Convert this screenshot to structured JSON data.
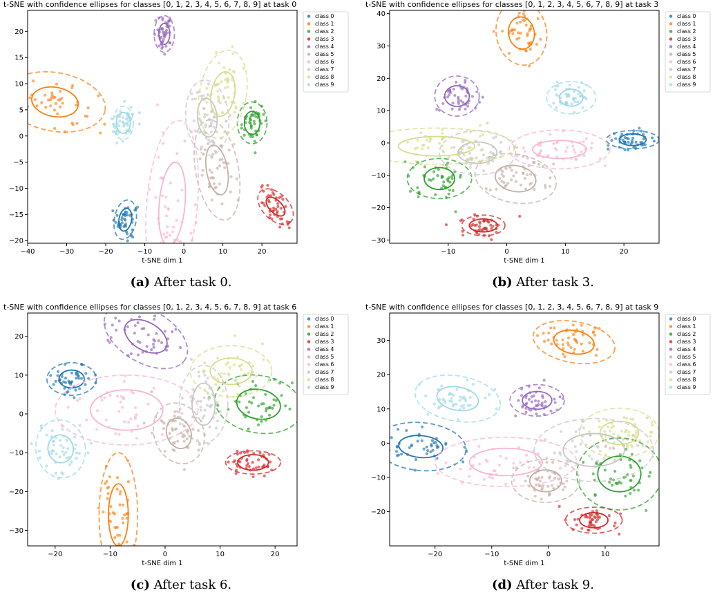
{
  "class_colors": [
    "#1f77b4",
    "#ff7f0e",
    "#2ca02c",
    "#d62728",
    "#9467bd",
    "#c5b0a8",
    "#f7b6d2",
    "#c7c7c7",
    "#dbdb8d",
    "#9edae5"
  ],
  "legend": [
    "class 0",
    "class 1",
    "class 2",
    "class 3",
    "class 4",
    "class 5",
    "class 6",
    "class 7",
    "class 8",
    "class 9"
  ],
  "chart_data": [
    {
      "type": "scatter",
      "title": "t-SNE with confidence ellipses for classes [0, 1, 2, 3, 4, 5, 6, 7, 8, 9] at task 0",
      "xlabel": "t-SNE dim 1",
      "ylabel": "",
      "xlim": [
        -40,
        29
      ],
      "ylim": [
        -20.5,
        24
      ],
      "xticks": [
        -40,
        -30,
        -20,
        -10,
        0,
        10,
        20
      ],
      "yticks": [
        -20,
        -15,
        -10,
        -5,
        0,
        5,
        10,
        15,
        20
      ],
      "caption_label": "(a)",
      "caption_text": " After task 0.",
      "clusters": [
        {
          "class": 0,
          "center": [
            -15,
            -16
          ],
          "inner": [
            1.6,
            2.2
          ],
          "outer": [
            2.8,
            3.8
          ],
          "angle": -10
        },
        {
          "class": 1,
          "center": [
            -33,
            6.5
          ],
          "inner": [
            6,
            2.8
          ],
          "outer": [
            13,
            5.6
          ],
          "angle": -10
        },
        {
          "class": 2,
          "center": [
            17.5,
            2.5
          ],
          "inner": [
            2,
            2.2
          ],
          "outer": [
            3.8,
            4
          ],
          "angle": 0
        },
        {
          "class": 3,
          "center": [
            23.5,
            -13.5
          ],
          "inner": [
            3,
            1.2
          ],
          "outer": [
            5.5,
            2.5
          ],
          "angle": -45
        },
        {
          "class": 4,
          "center": [
            -5,
            19.5
          ],
          "inner": [
            1.4,
            2
          ],
          "outer": [
            2.6,
            3.5
          ],
          "angle": 0
        },
        {
          "class": 5,
          "center": [
            8.5,
            -6.5
          ],
          "inner": [
            2.7,
            4.8
          ],
          "outer": [
            5.5,
            9.7
          ],
          "angle": 10
        },
        {
          "class": 6,
          "center": [
            -3,
            -13
          ],
          "inner": [
            3.3,
            8
          ],
          "outer": [
            6.5,
            16
          ],
          "angle": -5
        },
        {
          "class": 7,
          "center": [
            6,
            3.5
          ],
          "inner": [
            2.5,
            3.7
          ],
          "outer": [
            5.5,
            7.2
          ],
          "angle": 5
        },
        {
          "class": 8,
          "center": [
            10,
            8
          ],
          "inner": [
            3,
            4.3
          ],
          "outer": [
            6,
            8.5
          ],
          "angle": -10
        },
        {
          "class": 9,
          "center": [
            -15.5,
            2.5
          ],
          "inner": [
            1.8,
            2
          ],
          "outer": [
            2.6,
            3.2
          ],
          "angle": 0
        }
      ]
    },
    {
      "type": "scatter",
      "title": "t-SNE with confidence ellipses for classes [0, 1, 2, 3, 4, 5, 6, 7, 8, 9] at task 3",
      "xlabel": "t-SNE dim 1",
      "ylabel": "",
      "xlim": [
        -20,
        26
      ],
      "ylim": [
        -31,
        41
      ],
      "xticks": [
        -10,
        0,
        10,
        20
      ],
      "yticks": [
        -30,
        -20,
        -10,
        0,
        10,
        20,
        30,
        40
      ],
      "caption_label": "(b)",
      "caption_text": " After task 3.",
      "clusters": [
        {
          "class": 0,
          "center": [
            21.5,
            1
          ],
          "inner": [
            2.3,
            1.8
          ],
          "outer": [
            4.5,
            2.8
          ],
          "angle": 0
        },
        {
          "class": 1,
          "center": [
            2.5,
            34
          ],
          "inner": [
            2.2,
            5
          ],
          "outer": [
            4.3,
            10
          ],
          "angle": 10
        },
        {
          "class": 2,
          "center": [
            -11.5,
            -11
          ],
          "inner": [
            2.6,
            3.4
          ],
          "outer": [
            5.5,
            6.2
          ],
          "angle": 0
        },
        {
          "class": 3,
          "center": [
            -4,
            -25.5
          ],
          "inner": [
            2.4,
            2
          ],
          "outer": [
            3.7,
            3.2
          ],
          "angle": 0
        },
        {
          "class": 4,
          "center": [
            -8.5,
            14.5
          ],
          "inner": [
            2.1,
            3.2
          ],
          "outer": [
            3.8,
            6.2
          ],
          "angle": 0
        },
        {
          "class": 5,
          "center": [
            1.5,
            -11
          ],
          "inner": [
            3.5,
            4
          ],
          "outer": [
            7,
            7.5
          ],
          "angle": -10
        },
        {
          "class": 6,
          "center": [
            9,
            -2
          ],
          "inner": [
            4.6,
            2.8
          ],
          "outer": [
            8.6,
            6
          ],
          "angle": 0
        },
        {
          "class": 7,
          "center": [
            -5,
            -3
          ],
          "inner": [
            3.3,
            3.3
          ],
          "outer": [
            6.5,
            6.8
          ],
          "angle": 0
        },
        {
          "class": 8,
          "center": [
            -12,
            -1
          ],
          "inner": [
            6.5,
            3
          ],
          "outer": [
            13.5,
            5.6
          ],
          "angle": 0
        },
        {
          "class": 9,
          "center": [
            11,
            14
          ],
          "inner": [
            2,
            2.6
          ],
          "outer": [
            4.2,
            5
          ],
          "angle": 0
        }
      ]
    },
    {
      "type": "scatter",
      "title": "t-SNE with confidence ellipses for classes [0, 1, 2, 3, 4, 5, 6, 7, 8, 9] at task 6",
      "xlabel": "t-SNE dim 1",
      "ylabel": "",
      "xlim": [
        -25,
        24
      ],
      "ylim": [
        -34,
        26
      ],
      "xticks": [
        -20,
        -10,
        0,
        10,
        20
      ],
      "yticks": [
        -30,
        -20,
        -10,
        0,
        10,
        20
      ],
      "caption_label": "(c)",
      "caption_text": " After task 6.",
      "clusters": [
        {
          "class": 0,
          "center": [
            -17,
            9
          ],
          "inner": [
            2.3,
            2.3
          ],
          "outer": [
            4.5,
            4.2
          ],
          "angle": 0
        },
        {
          "class": 1,
          "center": [
            -8.5,
            -26
          ],
          "inner": [
            1.8,
            8
          ],
          "outer": [
            3.5,
            16
          ],
          "angle": 0
        },
        {
          "class": 2,
          "center": [
            17,
            2.5
          ],
          "inner": [
            4,
            3.8
          ],
          "outer": [
            8,
            7.4
          ],
          "angle": -10
        },
        {
          "class": 3,
          "center": [
            16,
            -12.5
          ],
          "inner": [
            2.8,
            2
          ],
          "outer": [
            5,
            3
          ],
          "angle": 0
        },
        {
          "class": 4,
          "center": [
            -3.5,
            20
          ],
          "inner": [
            4.2,
            3.6
          ],
          "outer": [
            8.3,
            6.8
          ],
          "angle": -30
        },
        {
          "class": 5,
          "center": [
            2.5,
            -5
          ],
          "inner": [
            2.2,
            4
          ],
          "outer": [
            4.5,
            8
          ],
          "angle": 20
        },
        {
          "class": 6,
          "center": [
            -7,
            1
          ],
          "inner": [
            6.6,
            5.2
          ],
          "outer": [
            13,
            9
          ],
          "angle": 0
        },
        {
          "class": 7,
          "center": [
            7,
            2.5
          ],
          "inner": [
            2.1,
            5.4
          ],
          "outer": [
            4.4,
            10
          ],
          "angle": 0
        },
        {
          "class": 8,
          "center": [
            12,
            11
          ],
          "inner": [
            3.8,
            3.4
          ],
          "outer": [
            7.4,
            6.6
          ],
          "angle": 0
        },
        {
          "class": 9,
          "center": [
            -19,
            -9
          ],
          "inner": [
            2.3,
            3.6
          ],
          "outer": [
            4.5,
            7.5
          ],
          "angle": 10
        }
      ]
    },
    {
      "type": "scatter",
      "title": "t-SNE with confidence ellipses for classes [0, 1, 2, 3, 4, 5, 6, 7, 8, 9] at task 9",
      "xlabel": "t-SNE dim 1",
      "ylabel": "",
      "xlim": [
        -28,
        19.5
      ],
      "ylim": [
        -30,
        38
      ],
      "xticks": [
        -20,
        -10,
        0,
        10
      ],
      "yticks": [
        -20,
        -10,
        0,
        10,
        20,
        30
      ],
      "caption_label": "(d)",
      "caption_text": " After task 9.",
      "clusters": [
        {
          "class": 0,
          "center": [
            -22.5,
            -1
          ],
          "inner": [
            3.9,
            3.2
          ],
          "outer": [
            8,
            7
          ],
          "angle": -5
        },
        {
          "class": 1,
          "center": [
            4.5,
            29.5
          ],
          "inner": [
            3.6,
            3.4
          ],
          "outer": [
            7.3,
            6
          ],
          "angle": -10
        },
        {
          "class": 2,
          "center": [
            12.5,
            -9
          ],
          "inner": [
            3.8,
            5.2
          ],
          "outer": [
            7.5,
            10.5
          ],
          "angle": 0
        },
        {
          "class": 3,
          "center": [
            8,
            -22.5
          ],
          "inner": [
            2.5,
            2.2
          ],
          "outer": [
            5,
            3.8
          ],
          "angle": 0
        },
        {
          "class": 4,
          "center": [
            -2,
            12.5
          ],
          "inner": [
            2.6,
            2.6
          ],
          "outer": [
            4.8,
            4.6
          ],
          "angle": 0
        },
        {
          "class": 5,
          "center": [
            -0.5,
            -11
          ],
          "inner": [
            2.8,
            3.2
          ],
          "outer": [
            6,
            6.3
          ],
          "angle": 0
        },
        {
          "class": 6,
          "center": [
            -7.5,
            -5.5
          ],
          "inner": [
            6.4,
            4
          ],
          "outer": [
            12.5,
            7.2
          ],
          "angle": 0
        },
        {
          "class": 7,
          "center": [
            8,
            -2
          ],
          "inner": [
            5.4,
            4.8
          ],
          "outer": [
            10.5,
            9.2
          ],
          "angle": 0
        },
        {
          "class": 8,
          "center": [
            12.5,
            3
          ],
          "inner": [
            3.4,
            3.4
          ],
          "outer": [
            7,
            7.2
          ],
          "angle": 0
        },
        {
          "class": 9,
          "center": [
            -16,
            13
          ],
          "inner": [
            3.7,
            3.4
          ],
          "outer": [
            7.6,
            6.6
          ],
          "angle": -10
        }
      ]
    }
  ]
}
